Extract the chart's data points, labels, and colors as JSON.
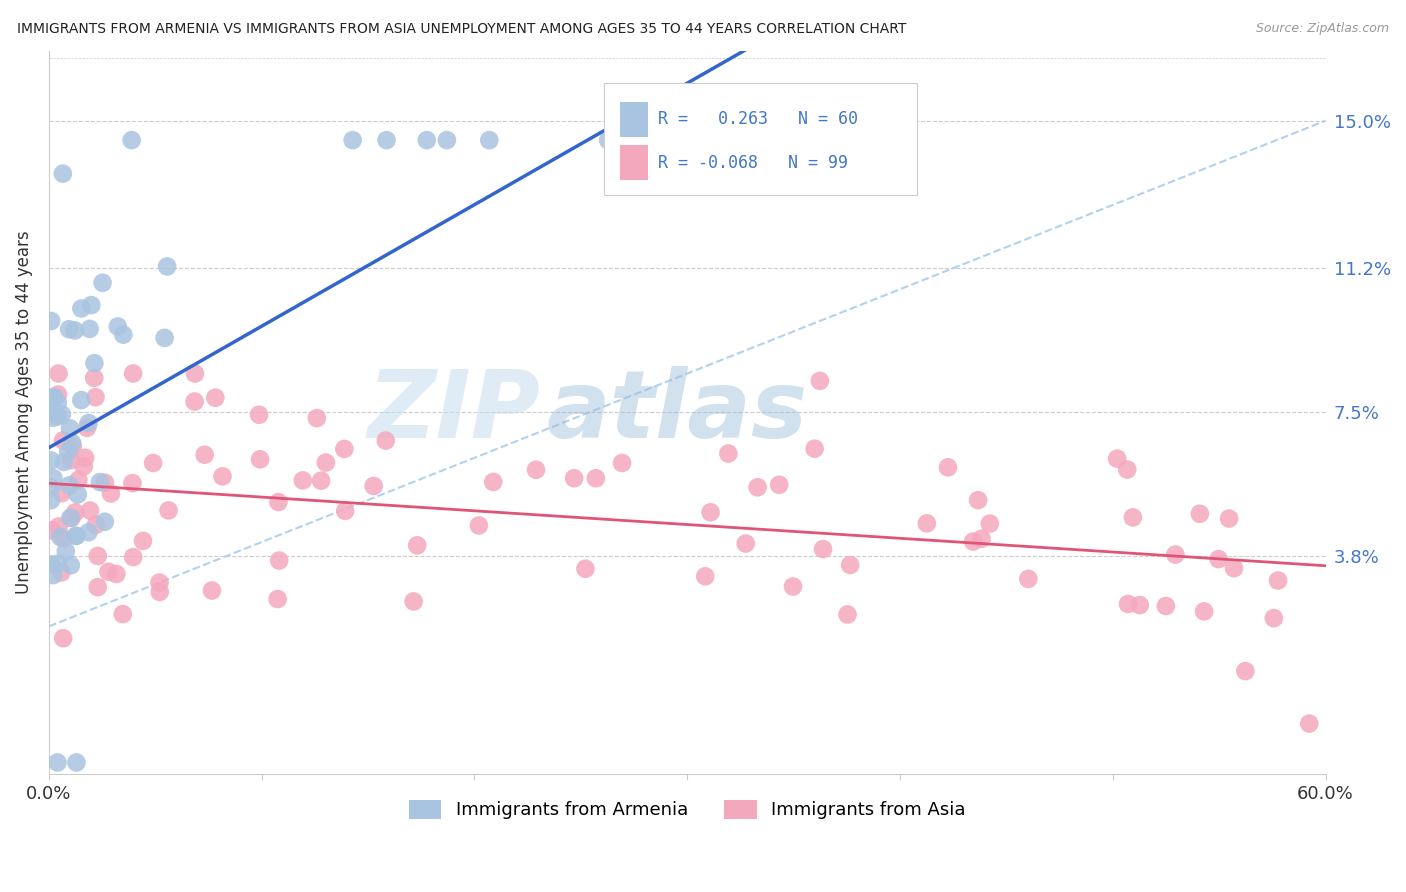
{
  "title": "IMMIGRANTS FROM ARMENIA VS IMMIGRANTS FROM ASIA UNEMPLOYMENT AMONG AGES 35 TO 44 YEARS CORRELATION CHART",
  "source": "Source: ZipAtlas.com",
  "ylabel": "Unemployment Among Ages 35 to 44 years",
  "xlim": [
    0.0,
    0.6
  ],
  "ylim": [
    -0.018,
    0.168
  ],
  "ytick_positions": [
    0.038,
    0.075,
    0.112,
    0.15
  ],
  "ytick_labels": [
    "3.8%",
    "7.5%",
    "11.2%",
    "15.0%"
  ],
  "grid_color": "#cccccc",
  "background_color": "#ffffff",
  "armenia_color": "#a8c4e0",
  "armenia_edge": "none",
  "asia_color": "#f4a8be",
  "asia_edge": "none",
  "armenia_R": 0.263,
  "armenia_N": 60,
  "asia_R": -0.068,
  "asia_N": 99,
  "armenia_line_color": "#3366cc",
  "asia_line_color": "#e05575",
  "diag_line_color": "#aaccee",
  "legend_label_armenia": "Immigrants from Armenia",
  "legend_label_asia": "Immigrants from Asia",
  "watermark_zip": "ZIP",
  "watermark_atlas": "atlas",
  "right_label_color": "#4477cc"
}
